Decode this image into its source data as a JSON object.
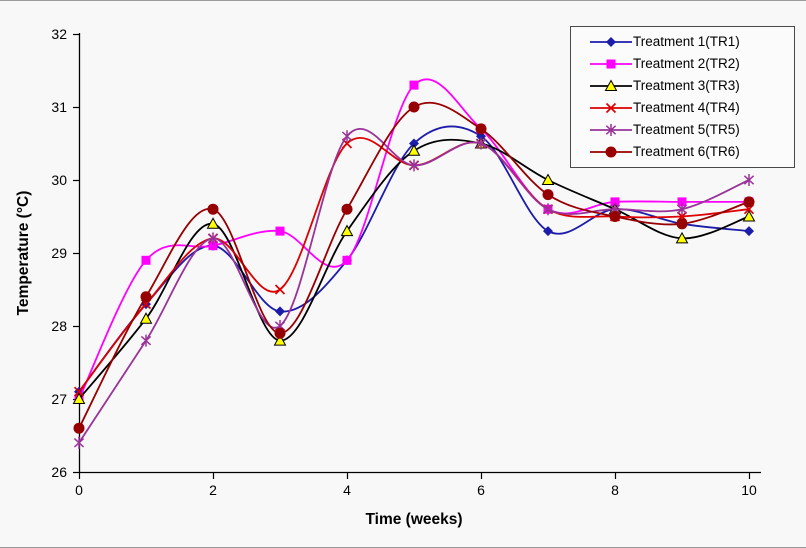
{
  "chart_data": {
    "type": "line",
    "title": "",
    "xlabel": "Time (weeks)",
    "ylabel": "Temperature (°C)",
    "x": [
      0,
      1,
      2,
      3,
      4,
      5,
      6,
      7,
      8,
      9,
      10
    ],
    "xlim": [
      0,
      10
    ],
    "ylim": [
      26,
      32
    ],
    "xticks": [
      0,
      2,
      4,
      6,
      8,
      10
    ],
    "yticks": [
      26,
      27,
      28,
      29,
      30,
      31,
      32
    ],
    "grid": false,
    "smooth_lines": true,
    "legend_position": "top-right",
    "background": "#f8f8f8",
    "series": [
      {
        "name": "Treatment 1(TR1)",
        "color": "#1c1caa",
        "marker": "diamond",
        "marker_fill": "#1c1caa",
        "values": [
          27.1,
          28.3,
          29.1,
          28.2,
          28.9,
          30.5,
          30.6,
          29.3,
          29.6,
          29.4,
          29.3
        ]
      },
      {
        "name": "Treatment 2(TR2)",
        "color": "#ff00ff",
        "marker": "square",
        "marker_fill": "#ff00ff",
        "values": [
          27.0,
          28.9,
          29.1,
          29.3,
          28.9,
          31.3,
          30.7,
          29.6,
          29.7,
          29.7,
          29.7
        ]
      },
      {
        "name": "Treatment 3(TR3)",
        "color": "#000000",
        "marker": "triangle",
        "marker_fill": "#ffff00",
        "values": [
          27.0,
          28.1,
          29.4,
          27.8,
          29.3,
          30.4,
          30.5,
          30.0,
          29.6,
          29.2,
          29.5
        ]
      },
      {
        "name": "Treatment 4(TR4)",
        "color": "#dd0000",
        "marker": "x",
        "marker_fill": "#dd0000",
        "values": [
          27.1,
          28.3,
          29.2,
          28.5,
          30.5,
          30.2,
          30.5,
          29.6,
          29.5,
          29.5,
          29.6
        ]
      },
      {
        "name": "Treatment 5(TR5)",
        "color": "#993399",
        "marker": "asterisk",
        "marker_fill": "#993399",
        "values": [
          26.4,
          27.8,
          29.2,
          28.0,
          30.6,
          30.2,
          30.5,
          29.6,
          29.6,
          29.6,
          30.0
        ]
      },
      {
        "name": "Treatment 6(TR6)",
        "color": "#970000",
        "marker": "circle",
        "marker_fill": "#970000",
        "values": [
          26.6,
          28.4,
          29.6,
          27.9,
          29.6,
          31.0,
          30.7,
          29.8,
          29.5,
          29.4,
          29.7
        ]
      }
    ]
  }
}
